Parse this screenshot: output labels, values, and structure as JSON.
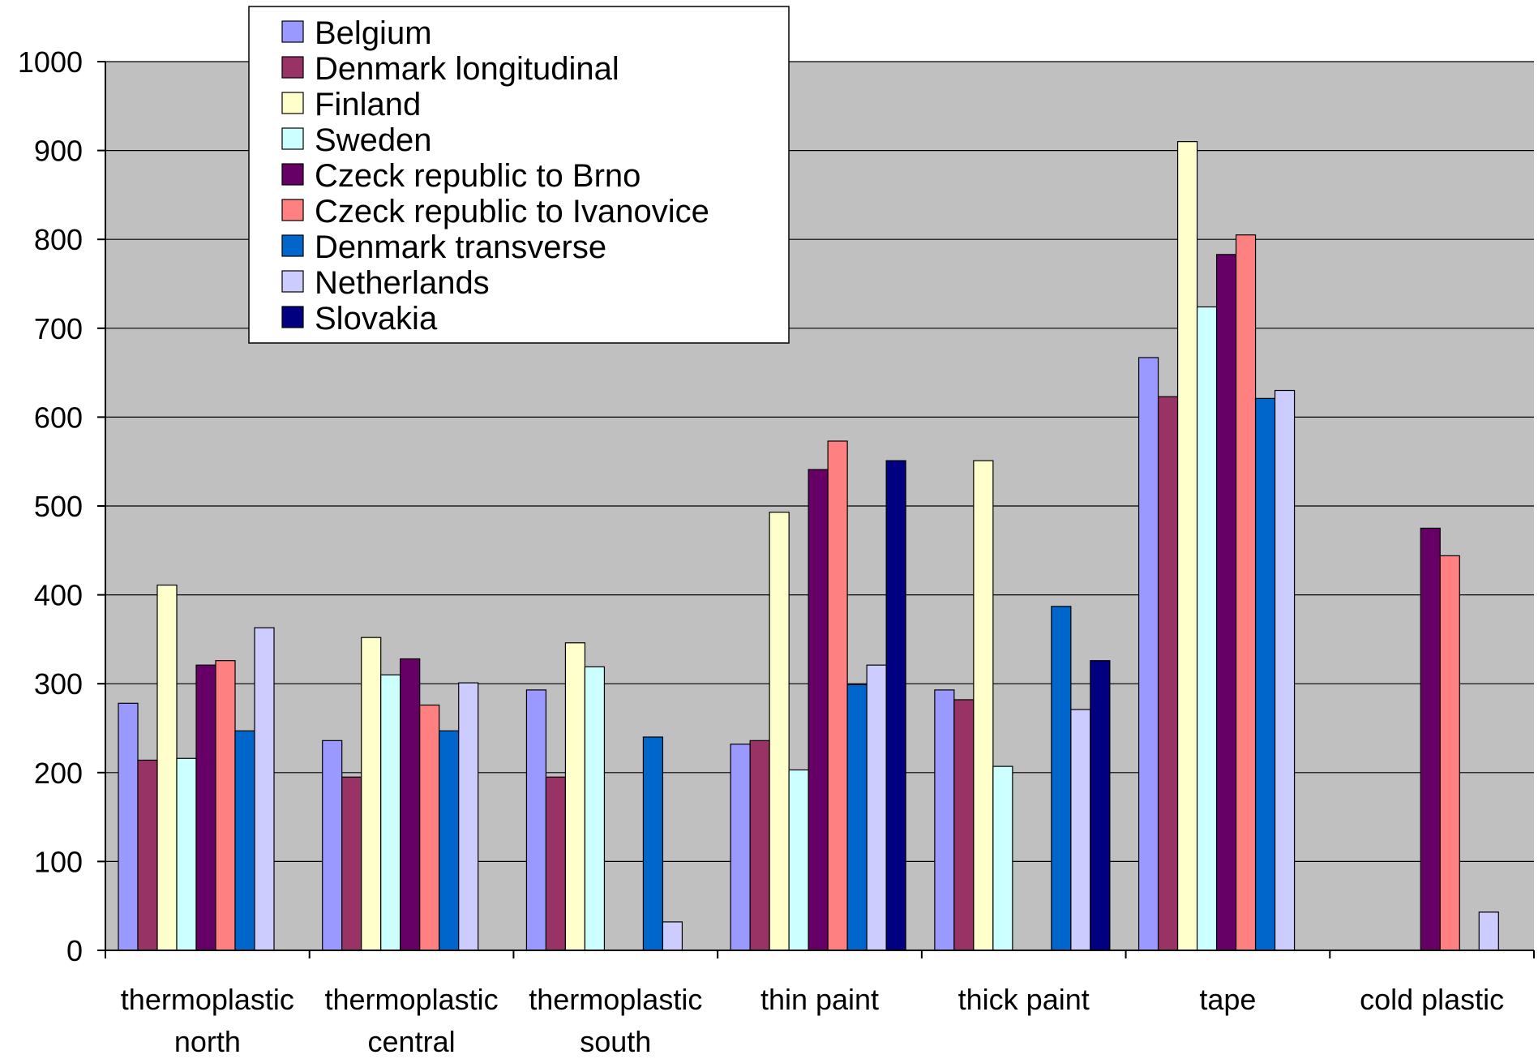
{
  "chart_data": {
    "type": "bar",
    "title": "",
    "xlabel": "",
    "ylabel": "",
    "ylim": [
      0,
      1000
    ],
    "yticks": [
      0,
      100,
      200,
      300,
      400,
      500,
      600,
      700,
      800,
      900,
      1000
    ],
    "grid": true,
    "legend_position": "top-left",
    "plot_background": "#C0C0C0",
    "categories": [
      [
        "thermoplastic",
        "north"
      ],
      [
        "thermoplastic",
        "central"
      ],
      [
        "thermoplastic",
        "south"
      ],
      [
        "thin paint"
      ],
      [
        "thick paint"
      ],
      [
        "tape"
      ],
      [
        "cold plastic"
      ]
    ],
    "series": [
      {
        "name": "Belgium",
        "color": "#9999FF",
        "values": [
          278,
          236,
          293,
          232,
          293,
          667,
          null
        ]
      },
      {
        "name": "Denmark longitudinal",
        "color": "#993366",
        "values": [
          214,
          195,
          195,
          236,
          282,
          623,
          null
        ]
      },
      {
        "name": "Finland",
        "color": "#FFFFCC",
        "values": [
          411,
          352,
          346,
          493,
          551,
          910,
          null
        ]
      },
      {
        "name": "Sweden",
        "color": "#CCFFFF",
        "values": [
          216,
          310,
          319,
          203,
          207,
          724,
          null
        ]
      },
      {
        "name": "Czeck republic to Brno",
        "color": "#660066",
        "values": [
          321,
          328,
          null,
          541,
          null,
          783,
          475
        ]
      },
      {
        "name": "Czeck republic to Ivanovice",
        "color": "#FF8080",
        "values": [
          326,
          276,
          null,
          573,
          null,
          805,
          444
        ]
      },
      {
        "name": "Denmark transverse",
        "color": "#0066CC",
        "values": [
          247,
          247,
          240,
          299,
          387,
          621,
          null
        ]
      },
      {
        "name": "Netherlands",
        "color": "#CCCCFF",
        "values": [
          363,
          301,
          32,
          321,
          271,
          630,
          43
        ]
      },
      {
        "name": "Slovakia",
        "color": "#000080",
        "values": [
          null,
          null,
          null,
          551,
          326,
          null,
          null
        ]
      }
    ]
  }
}
